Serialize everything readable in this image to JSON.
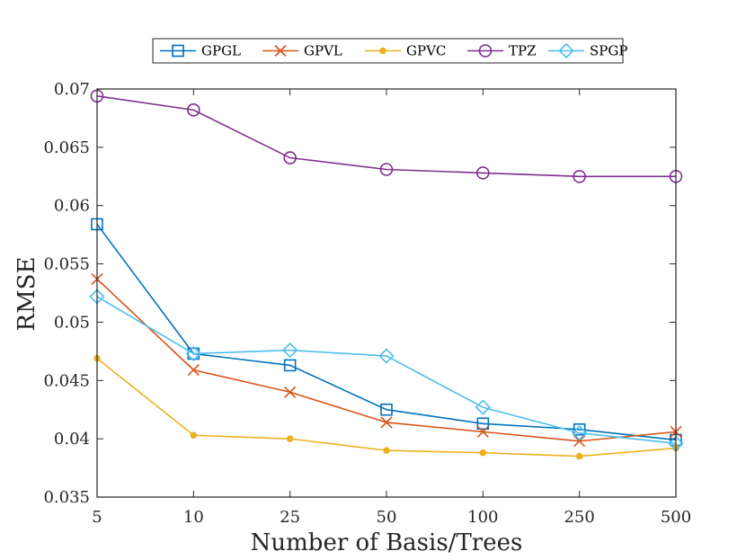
{
  "chart_data": {
    "type": "line",
    "xlabel": "Number of Basis/Trees",
    "ylabel": "RMSE",
    "x_categories": [
      "5",
      "10",
      "25",
      "50",
      "100",
      "250",
      "500"
    ],
    "ylim": [
      0.035,
      0.07
    ],
    "y_ticks": [
      0.035,
      0.04,
      0.045,
      0.05,
      0.055,
      0.06,
      0.065,
      0.07
    ],
    "y_tick_labels": [
      "0.035",
      "0.04",
      "0.045",
      "0.05",
      "0.055",
      "0.06",
      "0.065",
      "0.07"
    ],
    "legend_position": "top-center",
    "grid": false,
    "series": [
      {
        "name": "GPGL",
        "color": "#0072BD",
        "marker": "square",
        "values": [
          0.0584,
          0.0473,
          0.0463,
          0.0425,
          0.0413,
          0.0408,
          0.0399
        ]
      },
      {
        "name": "GPVL",
        "color": "#D95319",
        "marker": "x",
        "values": [
          0.0537,
          0.0459,
          0.044,
          0.0414,
          0.0406,
          0.0398,
          0.0406
        ]
      },
      {
        "name": "GPVC",
        "color": "#EDB120",
        "marker": "dot",
        "values": [
          0.0469,
          0.0403,
          0.04,
          0.039,
          0.0388,
          0.0385,
          0.0392
        ]
      },
      {
        "name": "TPZ",
        "color": "#7E2F8E",
        "marker": "circle",
        "values": [
          0.0694,
          0.0682,
          0.0641,
          0.0631,
          0.0628,
          0.0625,
          0.0625
        ]
      },
      {
        "name": "SPGP",
        "color": "#4DBEEE",
        "marker": "diamond",
        "values": [
          0.0522,
          0.0473,
          0.0476,
          0.0471,
          0.0427,
          0.0405,
          0.0396
        ]
      }
    ]
  }
}
